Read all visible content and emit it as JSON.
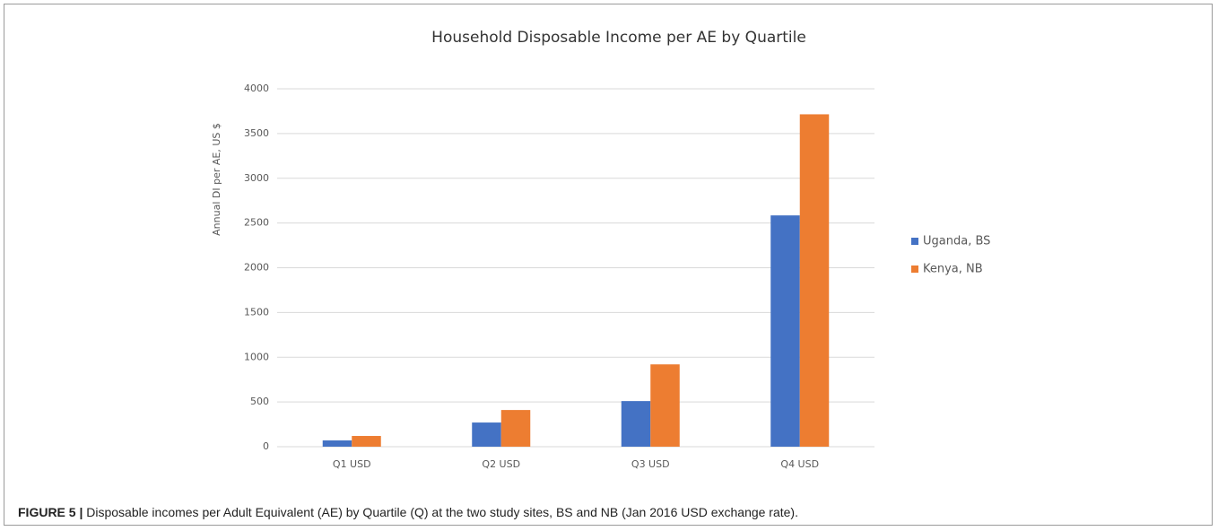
{
  "chart_data": {
    "type": "bar",
    "title": "Household Disposable Income per AE by Quartile",
    "y_label": "Annual DI per AE, US $",
    "categories": [
      "Q1 USD",
      "Q2 USD",
      "Q3 USD",
      "Q4 USD"
    ],
    "series": [
      {
        "name": "Uganda, BS",
        "color": "#4472c4",
        "values": [
          70,
          270,
          510,
          2585
        ]
      },
      {
        "name": "Kenya, NB",
        "color": "#ed7d31",
        "values": [
          120,
          410,
          920,
          3715
        ]
      }
    ],
    "ylim": [
      0,
      4000
    ],
    "yticks": [
      0,
      500,
      1000,
      1500,
      2000,
      2500,
      3000,
      3500,
      4000
    ],
    "grid": true,
    "legend": "right"
  },
  "caption": {
    "label": "FIGURE 5 |",
    "text": "Disposable incomes per Adult Equivalent (AE) by Quartile (Q) at the two study sites, BS and NB (Jan 2016 USD exchange rate)."
  }
}
